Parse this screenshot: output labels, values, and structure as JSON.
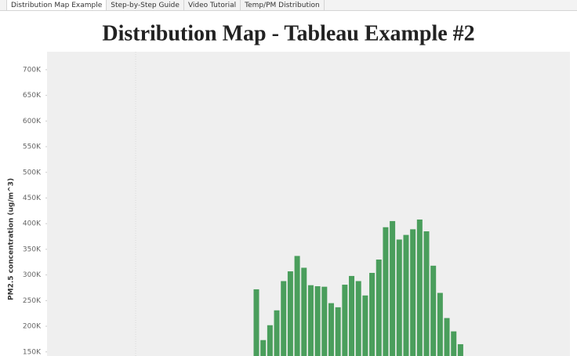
{
  "tabs": [
    "Distribution Map Example",
    "Step-by-Step Guide",
    "Video Tutorial",
    "Temp/PM Distribution"
  ],
  "chart_data": {
    "type": "bar",
    "title": "Distribution Map - Tableau Example #2",
    "y_label": "PM2.5 concentration (ug/m^3)",
    "categories": [
      null,
      null,
      null,
      null,
      null,
      null,
      null,
      null,
      null,
      null,
      null,
      null,
      null,
      null,
      null,
      null,
      null,
      null,
      null,
      null,
      null,
      null,
      null,
      null,
      null,
      null,
      null,
      null,
      null,
      null,
      null
    ],
    "values": [
      272000,
      173000,
      202000,
      231000,
      288000,
      307000,
      337000,
      314000,
      280000,
      278000,
      277000,
      245000,
      237000,
      281000,
      298000,
      288000,
      260000,
      304000,
      330000,
      393000,
      405000,
      369000,
      378000,
      389000,
      408000,
      385000,
      318000,
      265000,
      216000,
      190000,
      165000
    ],
    "color": "#4a9e5c",
    "ylim": [
      142000,
      735000
    ],
    "yticks": [
      {
        "value": 150000,
        "label": "150K"
      },
      {
        "value": 200000,
        "label": "200K"
      },
      {
        "value": 250000,
        "label": "250K"
      },
      {
        "value": 300000,
        "label": "300K"
      },
      {
        "value": 350000,
        "label": "350K"
      },
      {
        "value": 400000,
        "label": "400K"
      },
      {
        "value": 450000,
        "label": "450K"
      },
      {
        "value": 500000,
        "label": "500K"
      },
      {
        "value": 550000,
        "label": "550K"
      },
      {
        "value": 600000,
        "label": "600K"
      },
      {
        "value": 650000,
        "label": "650K"
      },
      {
        "value": 700000,
        "label": "700K"
      }
    ],
    "grid": false
  }
}
